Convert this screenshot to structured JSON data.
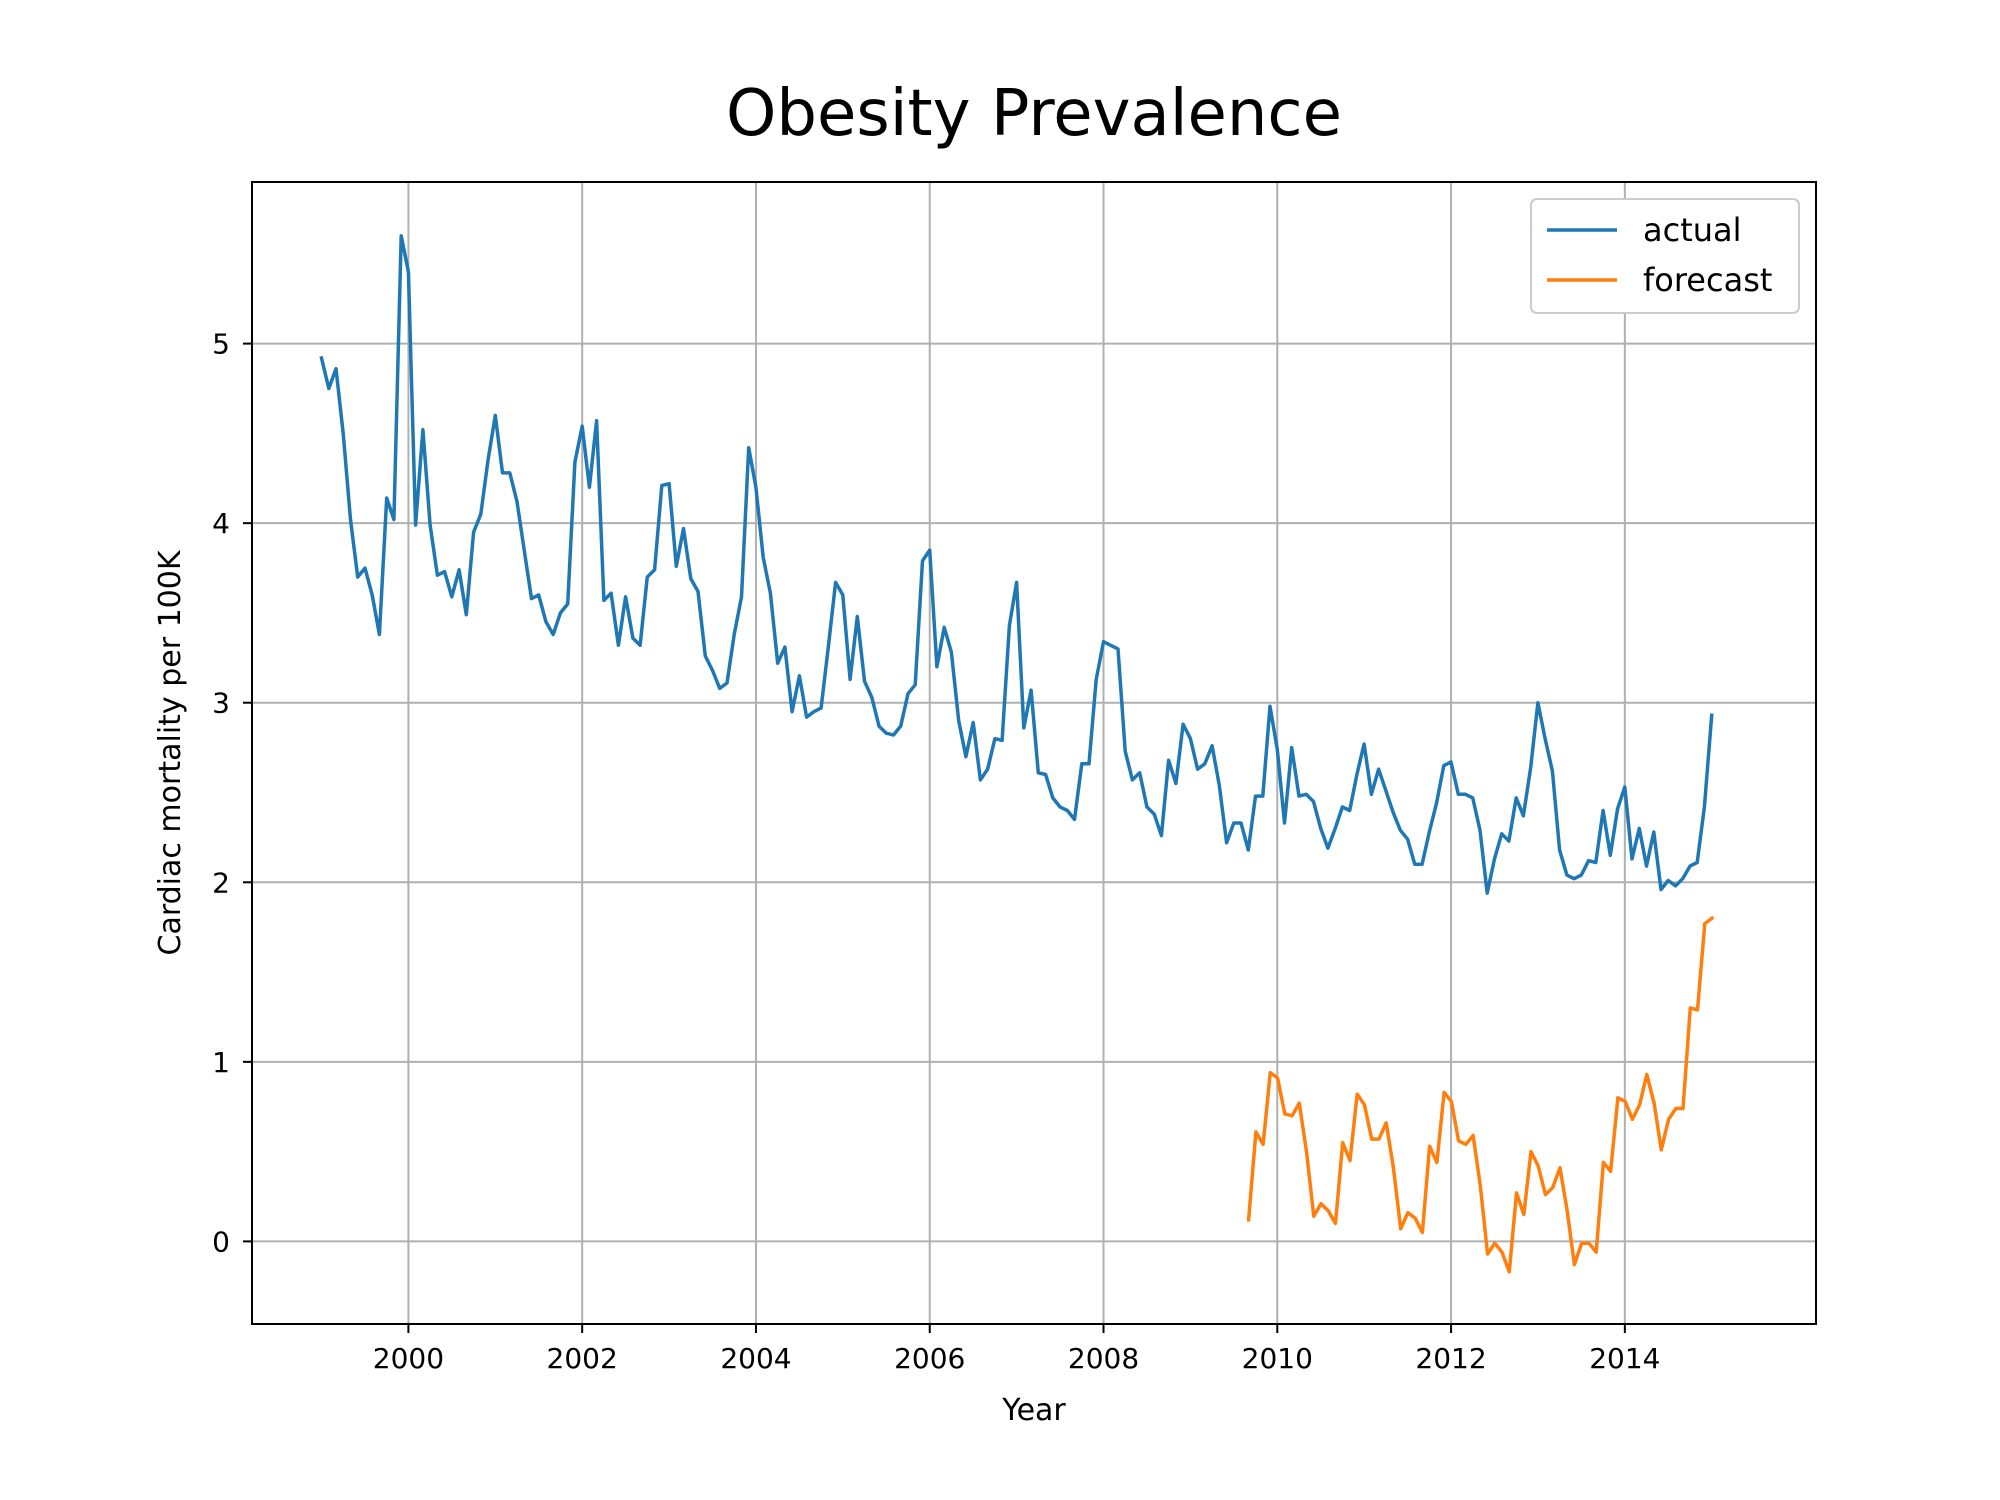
{
  "chart_data": {
    "type": "line",
    "title": "Obesity Prevalence",
    "xlabel": "Year",
    "ylabel": "Cardiac mortality per 100K",
    "xlim": [
      1998.2,
      2016.2
    ],
    "ylim": [
      -0.46,
      5.9
    ],
    "x_ticks": [
      2000,
      2002,
      2004,
      2006,
      2008,
      2010,
      2012,
      2014
    ],
    "x_tick_labels": [
      "2000",
      "2002",
      "2004",
      "2006",
      "2008",
      "2010",
      "2012",
      "2014"
    ],
    "y_ticks": [
      0,
      1,
      2,
      3,
      4,
      5
    ],
    "y_tick_labels": [
      "0",
      "1",
      "2",
      "3",
      "4",
      "5"
    ],
    "grid": true,
    "legend_position": "top-right",
    "series": [
      {
        "name": "actual",
        "color": "#1f77b4",
        "x_start": 1999.0,
        "x_step": 0.08333,
        "values": [
          4.92,
          4.75,
          4.86,
          4.5,
          4.02,
          3.7,
          3.75,
          3.6,
          3.38,
          4.14,
          4.02,
          5.6,
          5.4,
          3.99,
          4.52,
          3.99,
          3.71,
          3.73,
          3.59,
          3.74,
          3.49,
          3.95,
          4.05,
          4.35,
          4.6,
          4.28,
          4.28,
          4.12,
          3.85,
          3.58,
          3.6,
          3.45,
          3.38,
          3.5,
          3.55,
          4.34,
          4.54,
          4.2,
          4.57,
          3.57,
          3.61,
          3.32,
          3.59,
          3.36,
          3.32,
          3.7,
          3.74,
          4.21,
          4.22,
          3.76,
          3.97,
          3.69,
          3.62,
          3.26,
          3.18,
          3.08,
          3.11,
          3.38,
          3.59,
          4.42,
          4.2,
          3.81,
          3.61,
          3.22,
          3.31,
          2.95,
          3.15,
          2.92,
          2.95,
          2.97,
          3.31,
          3.67,
          3.6,
          3.13,
          3.48,
          3.12,
          3.03,
          2.87,
          2.83,
          2.82,
          2.87,
          3.05,
          3.1,
          3.79,
          3.85,
          3.2,
          3.42,
          3.28,
          2.9,
          2.7,
          2.89,
          2.57,
          2.63,
          2.8,
          2.79,
          3.43,
          3.67,
          2.86,
          3.07,
          2.61,
          2.6,
          2.47,
          2.42,
          2.4,
          2.35,
          2.66,
          2.66,
          3.13,
          3.34,
          3.32,
          3.3,
          2.73,
          2.57,
          2.61,
          2.42,
          2.38,
          2.26,
          2.68,
          2.55,
          2.88,
          2.8,
          2.63,
          2.66,
          2.76,
          2.54,
          2.22,
          2.33,
          2.33,
          2.18,
          2.48,
          2.48,
          2.98,
          2.74,
          2.33,
          2.75,
          2.48,
          2.49,
          2.45,
          2.3,
          2.19,
          2.3,
          2.42,
          2.4,
          2.6,
          2.77,
          2.49,
          2.63,
          2.51,
          2.39,
          2.29,
          2.24,
          2.1,
          2.1,
          2.28,
          2.44,
          2.65,
          2.67,
          2.49,
          2.49,
          2.47,
          2.29,
          1.94,
          2.13,
          2.27,
          2.23,
          2.47,
          2.37,
          2.64,
          3.0,
          2.8,
          2.62,
          2.18,
          2.04,
          2.02,
          2.04,
          2.12,
          2.11,
          2.4,
          2.15,
          2.41,
          2.53,
          2.13,
          2.3,
          2.09,
          2.28,
          1.96,
          2.01,
          1.98,
          2.02,
          2.09,
          2.11,
          2.42,
          2.93
        ]
      },
      {
        "name": "forecast",
        "color": "#ff7f0e",
        "x_start": 2009.67,
        "x_step": 0.08333,
        "values": [
          0.12,
          0.61,
          0.54,
          0.94,
          0.91,
          0.71,
          0.7,
          0.77,
          0.5,
          0.14,
          0.21,
          0.17,
          0.1,
          0.55,
          0.45,
          0.82,
          0.76,
          0.57,
          0.57,
          0.66,
          0.41,
          0.07,
          0.16,
          0.13,
          0.05,
          0.53,
          0.44,
          0.83,
          0.78,
          0.56,
          0.54,
          0.59,
          0.31,
          -0.07,
          -0.01,
          -0.06,
          -0.17,
          0.27,
          0.15,
          0.5,
          0.42,
          0.26,
          0.3,
          0.41,
          0.17,
          -0.13,
          -0.01,
          -0.01,
          -0.06,
          0.44,
          0.39,
          0.8,
          0.78,
          0.68,
          0.76,
          0.93,
          0.77,
          0.51,
          0.68,
          0.74,
          0.74,
          1.3,
          1.29,
          1.77,
          1.8
        ]
      }
    ]
  }
}
